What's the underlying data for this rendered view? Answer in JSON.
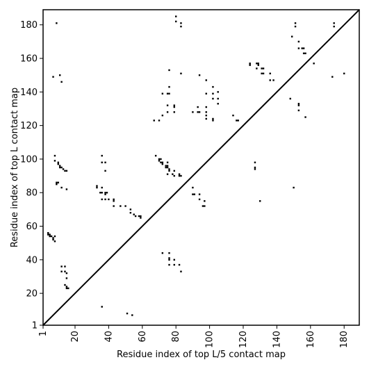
{
  "chart_data": {
    "type": "scatter",
    "title": "",
    "xlabel": "Residue index of top L/5 contact map",
    "ylabel": "Residue index of top L contact map",
    "xlim": [
      1,
      189
    ],
    "ylim": [
      1,
      189
    ],
    "xticks": [
      1,
      20,
      40,
      60,
      80,
      100,
      120,
      140,
      160,
      180
    ],
    "yticks": [
      1,
      20,
      40,
      60,
      80,
      100,
      120,
      140,
      160,
      180
    ],
    "grid": false,
    "diagonal": true,
    "upper_triangle_points": [
      [
        9,
        181
      ],
      [
        11,
        150
      ],
      [
        12,
        146
      ],
      [
        7,
        149
      ],
      [
        67,
        123
      ],
      [
        70,
        123
      ],
      [
        72,
        126
      ],
      [
        75,
        128
      ],
      [
        79,
        128
      ],
      [
        72,
        139
      ],
      [
        75,
        139
      ],
      [
        76,
        139
      ],
      [
        76,
        143
      ],
      [
        76,
        153
      ],
      [
        75,
        132
      ],
      [
        79,
        132
      ],
      [
        79,
        131
      ],
      [
        80,
        185
      ],
      [
        80,
        182
      ],
      [
        83,
        181
      ],
      [
        83,
        179
      ],
      [
        83,
        151
      ],
      [
        90,
        128
      ],
      [
        93,
        128
      ],
      [
        94,
        128
      ],
      [
        93,
        131
      ],
      [
        94,
        150
      ],
      [
        98,
        147
      ],
      [
        98,
        131
      ],
      [
        98,
        139
      ],
      [
        98,
        128
      ],
      [
        98,
        124
      ],
      [
        98,
        126
      ],
      [
        102,
        124
      ],
      [
        102,
        123
      ],
      [
        102,
        136
      ],
      [
        102,
        139
      ],
      [
        102,
        143
      ],
      [
        105,
        140
      ],
      [
        105,
        136
      ],
      [
        105,
        133
      ],
      [
        114,
        126
      ],
      [
        116,
        123
      ],
      [
        117,
        123
      ],
      [
        124,
        156
      ],
      [
        124,
        157
      ],
      [
        128,
        157
      ],
      [
        128,
        154
      ],
      [
        129,
        157
      ],
      [
        129,
        156
      ],
      [
        131,
        151
      ],
      [
        131,
        154
      ],
      [
        132,
        154
      ],
      [
        132,
        151
      ],
      [
        136,
        151
      ],
      [
        136,
        147
      ],
      [
        138,
        147
      ],
      [
        149,
        173
      ],
      [
        151,
        181
      ],
      [
        151,
        179
      ],
      [
        153,
        170
      ],
      [
        153,
        166
      ],
      [
        155,
        166
      ],
      [
        156,
        163
      ],
      [
        156,
        166
      ],
      [
        157,
        163
      ],
      [
        162,
        157
      ],
      [
        174,
        181
      ],
      [
        174,
        179
      ],
      [
        173,
        149
      ],
      [
        180,
        151
      ]
    ],
    "lower_triangle_points": [
      [
        8,
        102
      ],
      [
        8,
        99
      ],
      [
        10,
        98
      ],
      [
        10,
        97
      ],
      [
        11,
        96
      ],
      [
        11,
        95
      ],
      [
        12,
        95
      ],
      [
        13,
        94
      ],
      [
        14,
        93
      ],
      [
        15,
        93
      ],
      [
        9,
        86
      ],
      [
        10,
        86
      ],
      [
        9,
        85
      ],
      [
        12,
        83
      ],
      [
        15,
        82
      ],
      [
        4,
        56
      ],
      [
        4,
        55
      ],
      [
        5,
        55
      ],
      [
        5,
        54
      ],
      [
        6,
        54
      ],
      [
        7,
        53
      ],
      [
        7,
        52
      ],
      [
        8,
        54
      ],
      [
        8,
        51
      ],
      [
        12,
        36
      ],
      [
        14,
        36
      ],
      [
        12,
        33
      ],
      [
        14,
        33
      ],
      [
        15,
        32
      ],
      [
        15,
        29
      ],
      [
        14,
        25
      ],
      [
        15,
        24
      ],
      [
        15,
        23
      ],
      [
        16,
        23
      ],
      [
        33,
        84
      ],
      [
        33,
        83
      ],
      [
        36,
        83
      ],
      [
        36,
        80
      ],
      [
        35,
        80
      ],
      [
        38,
        80
      ],
      [
        38,
        79
      ],
      [
        39,
        80
      ],
      [
        36,
        102
      ],
      [
        36,
        98
      ],
      [
        38,
        98
      ],
      [
        38,
        93
      ],
      [
        36,
        76
      ],
      [
        38,
        76
      ],
      [
        40,
        76
      ],
      [
        43,
        76
      ],
      [
        43,
        75
      ],
      [
        43,
        72
      ],
      [
        47,
        72
      ],
      [
        50,
        72
      ],
      [
        53,
        70
      ],
      [
        53,
        68
      ],
      [
        55,
        67
      ],
      [
        56,
        66
      ],
      [
        58,
        66
      ],
      [
        59,
        66
      ],
      [
        59,
        65
      ],
      [
        68,
        102
      ],
      [
        70,
        100
      ],
      [
        70,
        99
      ],
      [
        71,
        100
      ],
      [
        71,
        98
      ],
      [
        72,
        98
      ],
      [
        72,
        97
      ],
      [
        74,
        96
      ],
      [
        74,
        95
      ],
      [
        75,
        98
      ],
      [
        75,
        96
      ],
      [
        75,
        95
      ],
      [
        76,
        94
      ],
      [
        76,
        93
      ],
      [
        75,
        91
      ],
      [
        78,
        91
      ],
      [
        79,
        93
      ],
      [
        79,
        90
      ],
      [
        82,
        91
      ],
      [
        82,
        90
      ],
      [
        83,
        90
      ],
      [
        90,
        83
      ],
      [
        90,
        79
      ],
      [
        91,
        79
      ],
      [
        94,
        79
      ],
      [
        94,
        76
      ],
      [
        96,
        72
      ],
      [
        97,
        72
      ],
      [
        97,
        75
      ],
      [
        127,
        98
      ],
      [
        127,
        95
      ],
      [
        127,
        94
      ],
      [
        130,
        75
      ],
      [
        148,
        136
      ],
      [
        153,
        133
      ],
      [
        153,
        132
      ],
      [
        153,
        129
      ],
      [
        157,
        125
      ],
      [
        150,
        83
      ],
      [
        36,
        12
      ],
      [
        51,
        8
      ],
      [
        54,
        7
      ],
      [
        72,
        44
      ],
      [
        76,
        44
      ],
      [
        76,
        41
      ],
      [
        76,
        40
      ],
      [
        76,
        37
      ],
      [
        79,
        40
      ],
      [
        79,
        37
      ],
      [
        82,
        37
      ],
      [
        83,
        33
      ]
    ]
  }
}
